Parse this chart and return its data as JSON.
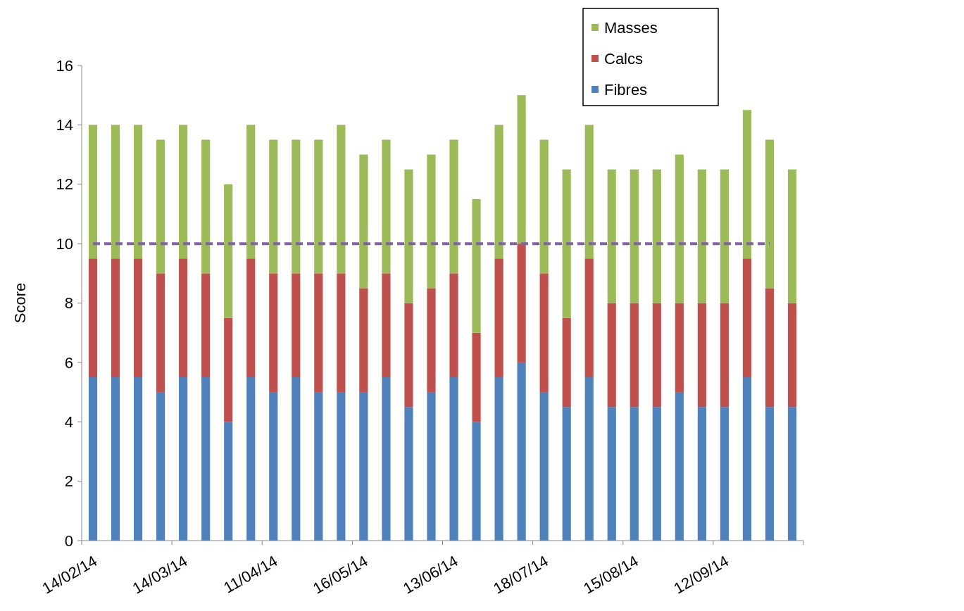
{
  "chart_data": {
    "type": "bar",
    "stacked": true,
    "ylabel": "Score",
    "categories": [
      "14/02/14",
      null,
      null,
      null,
      "14/03/14",
      null,
      null,
      null,
      "11/04/14",
      null,
      null,
      null,
      "16/05/14",
      null,
      null,
      null,
      "13/06/14",
      null,
      null,
      null,
      "18/07/14",
      null,
      null,
      null,
      "15/08/14",
      null,
      null,
      null,
      "12/09/14",
      null,
      null,
      null
    ],
    "series": [
      {
        "name": "Fibres",
        "color": "#4f81bd",
        "values": [
          5.5,
          5.5,
          5.5,
          5,
          5.5,
          5.5,
          4,
          5.5,
          5,
          5.5,
          5,
          5,
          5,
          5.5,
          4.5,
          5,
          5.5,
          4,
          5.5,
          6,
          5,
          4.5,
          5.5,
          4.5,
          4.5,
          4.5,
          5,
          4.5,
          4.5,
          5.5,
          4.5,
          4.5
        ]
      },
      {
        "name": "Calcs",
        "color": "#c0504d",
        "values": [
          4,
          4,
          4,
          4,
          4,
          3.5,
          3.5,
          4,
          4,
          3.5,
          4,
          4,
          3.5,
          3.5,
          3.5,
          3.5,
          3.5,
          3,
          4,
          4,
          4,
          3,
          4,
          3.5,
          3.5,
          3.5,
          3,
          3.5,
          3.5,
          4,
          4,
          3.5
        ]
      },
      {
        "name": "Masses",
        "color": "#9bbb59",
        "values": [
          4.5,
          4.5,
          4.5,
          4.5,
          4.5,
          4.5,
          4.5,
          4.5,
          4.5,
          4.5,
          4.5,
          5,
          4.5,
          4.5,
          4.5,
          4.5,
          4.5,
          4.5,
          4.5,
          5,
          4.5,
          5,
          4.5,
          4.5,
          4.5,
          4.5,
          5,
          4.5,
          4.5,
          5,
          5,
          4.5
        ]
      }
    ],
    "ylim": [
      0,
      16
    ],
    "yticks": [
      0,
      2,
      4,
      6,
      8,
      10,
      12,
      14,
      16
    ],
    "grid": false,
    "legend": "top right",
    "ref_lines": [
      {
        "axis": "y",
        "value": 10,
        "color": "#8064a2",
        "line_style": "dashed"
      }
    ]
  }
}
